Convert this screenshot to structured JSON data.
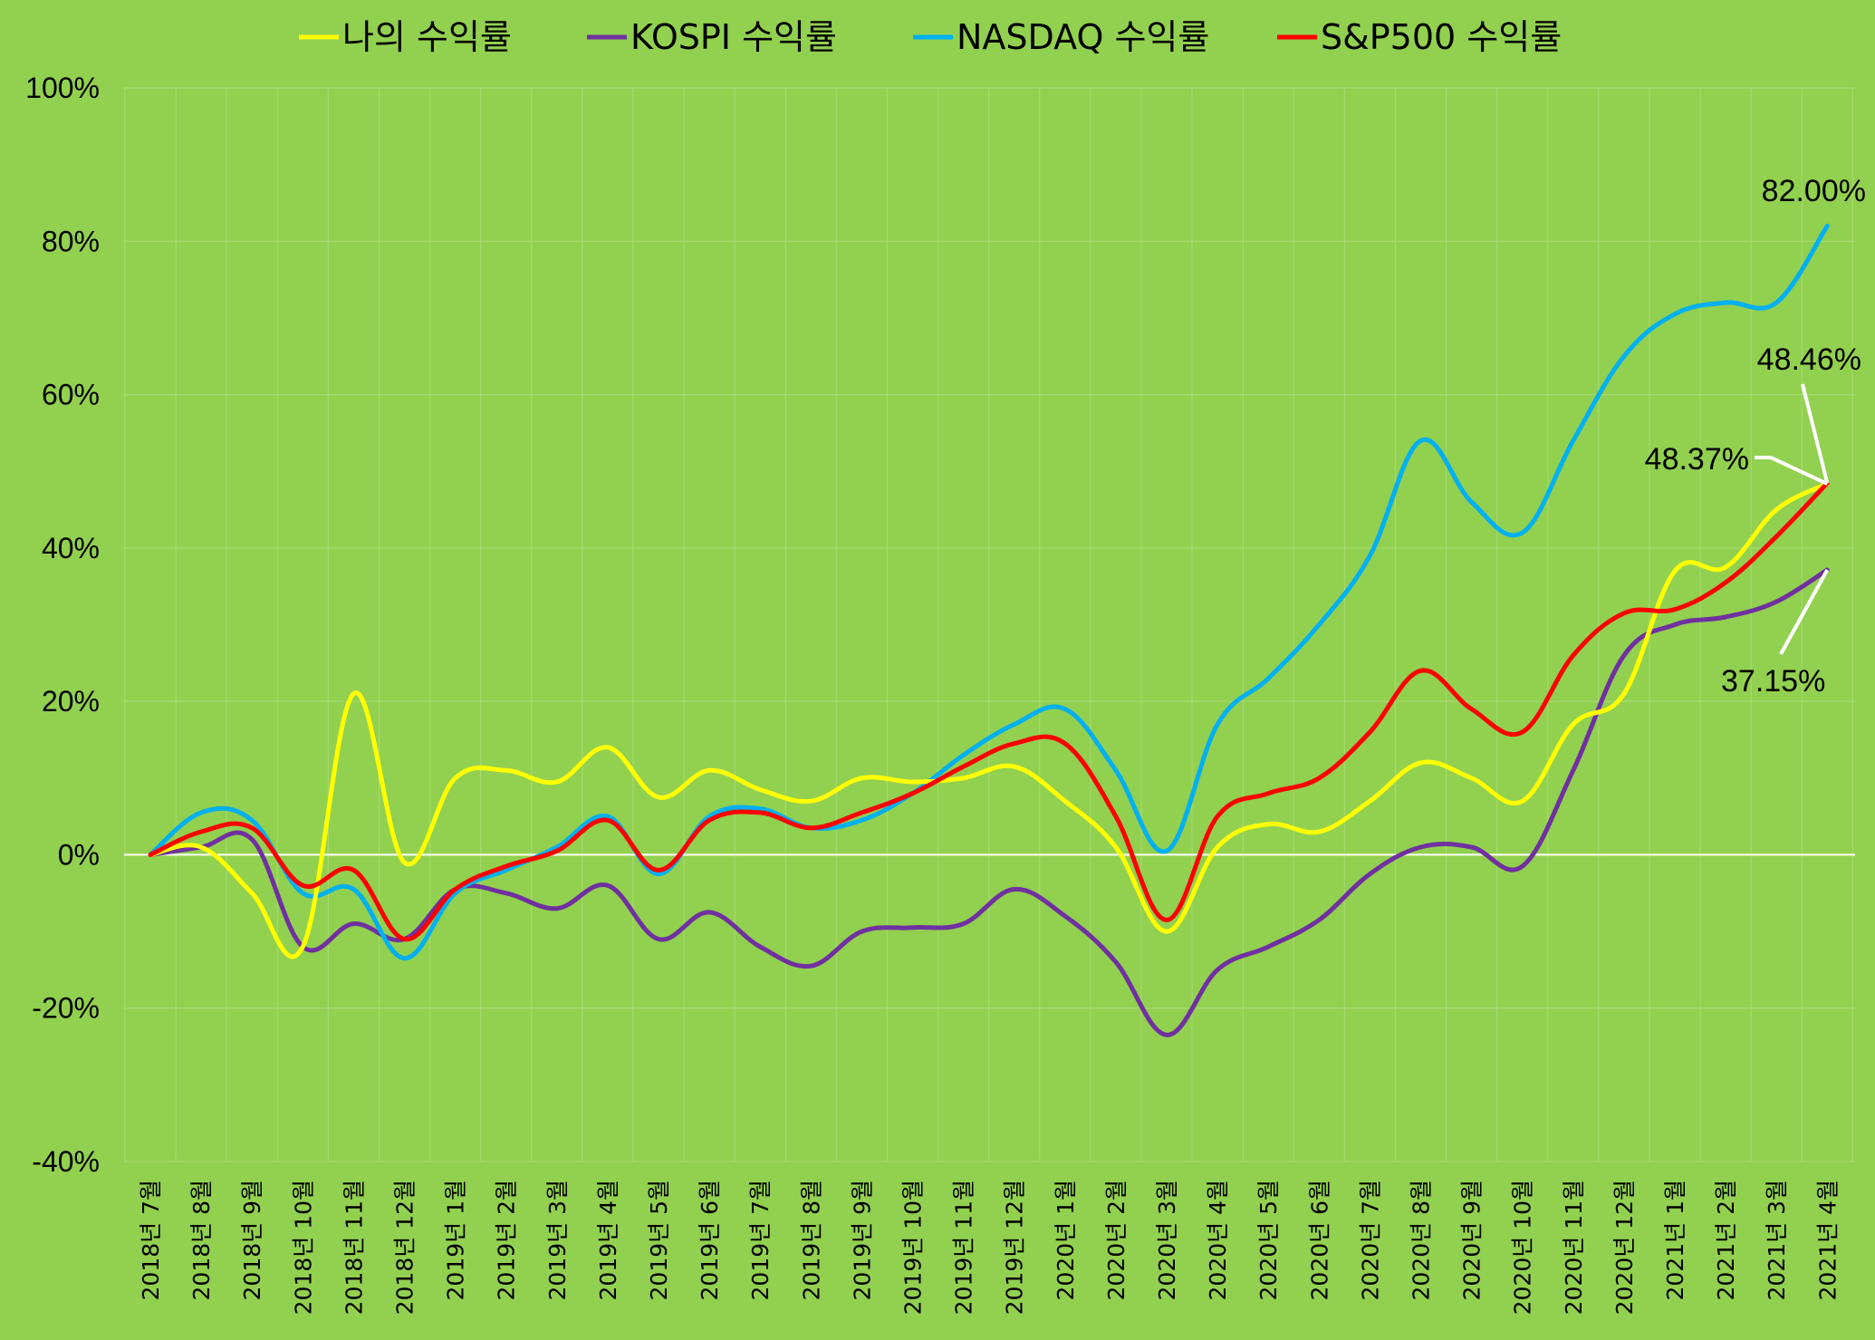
{
  "chart_data": {
    "type": "line",
    "title": "",
    "xlabel": "",
    "ylabel": "",
    "ylim": [
      -40,
      100
    ],
    "y_ticks": [
      -40,
      -20,
      0,
      20,
      40,
      60,
      80,
      100
    ],
    "y_tick_labels": [
      "-40%",
      "-20%",
      "0%",
      "20%",
      "40%",
      "60%",
      "80%",
      "100%"
    ],
    "grid": true,
    "legend_position": "top",
    "categories": [
      "2018년 7월",
      "2018년 8월",
      "2018년 9월",
      "2018년 10월",
      "2018년 11월",
      "2018년 12월",
      "2019년 1월",
      "2019년 2월",
      "2019년 3월",
      "2019년 4월",
      "2019년 5월",
      "2019년 6월",
      "2019년 7월",
      "2019년 8월",
      "2019년 9월",
      "2019년 10월",
      "2019년 11월",
      "2019년 12월",
      "2020년 1월",
      "2020년 2월",
      "2020년 3월",
      "2020년 4월",
      "2020년 5월",
      "2020년 6월",
      "2020년 7월",
      "2020년 8월",
      "2020년 9월",
      "2020년 10월",
      "2020년 11월",
      "2020년 12월",
      "2021년 1월",
      "2021년 2월",
      "2021년 3월",
      "2021년 4월"
    ],
    "series": [
      {
        "name": "나의 수익률",
        "color": "#ffff00",
        "values": [
          0,
          1,
          -5,
          -12,
          21,
          -1,
          10,
          11,
          9.5,
          14,
          7.5,
          11,
          8.5,
          7,
          10,
          9.5,
          10,
          11.5,
          7,
          1,
          -10,
          1,
          4,
          3,
          7,
          12,
          10,
          7,
          17,
          21,
          37,
          37.5,
          45,
          48.37
        ]
      },
      {
        "name": "KOSPI 수익률",
        "color": "#7030a0",
        "values": [
          0,
          1,
          2,
          -12,
          -9,
          -11,
          -4.5,
          -5,
          -7,
          -4,
          -11,
          -7.5,
          -12,
          -14.5,
          -10,
          -9.5,
          -9,
          -4.5,
          -8,
          -14,
          -23.5,
          -15,
          -12,
          -8.5,
          -2.5,
          1,
          1,
          -1.5,
          11,
          26,
          30,
          31,
          33,
          37.15
        ]
      },
      {
        "name": "NASDAQ 수익률",
        "color": "#00b0f0",
        "values": [
          0,
          5.5,
          4.5,
          -5,
          -4.5,
          -13.5,
          -5,
          -2,
          1,
          5,
          -2.5,
          5,
          6,
          3.5,
          4.5,
          8,
          13,
          17,
          19,
          11,
          0.5,
          17,
          23,
          30,
          39,
          54,
          46,
          42,
          54,
          65,
          70.5,
          72,
          72,
          82
        ]
      },
      {
        "name": "S&P500 수익률",
        "color": "#ff0000",
        "values": [
          0,
          3,
          3.5,
          -4,
          -2,
          -11,
          -4.5,
          -1.5,
          0.5,
          4.5,
          -2,
          4.5,
          5.5,
          3.5,
          5.5,
          8,
          11.5,
          14.5,
          14.5,
          5,
          -8.5,
          5,
          8,
          10,
          16,
          24,
          19,
          16,
          26,
          31.5,
          32,
          35.5,
          41.5,
          48.46
        ]
      }
    ],
    "annotations": [
      {
        "text": "82.00%",
        "series": 2,
        "index": 33
      },
      {
        "text": "48.46%",
        "series": 3,
        "index": 33
      },
      {
        "text": "48.37%",
        "series": 0,
        "index": 33
      },
      {
        "text": "37.15%",
        "series": 1,
        "index": 33
      }
    ]
  }
}
